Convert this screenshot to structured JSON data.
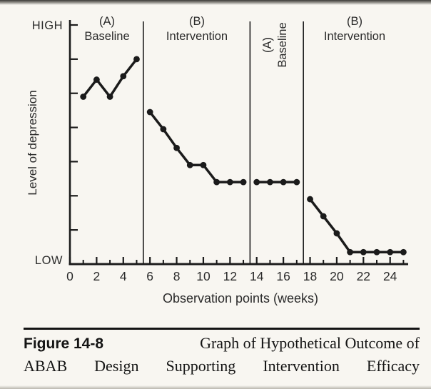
{
  "figure": {
    "caption_label": "Figure 14-8",
    "caption_line1": "Graph of Hypothetical Outcome of",
    "caption_line2": "ABAB Design Supporting Intervention Efficacy"
  },
  "chart_data": {
    "type": "line",
    "title": "",
    "xlabel": "Observation points (weeks)",
    "ylabel": "Level of depression",
    "y_axis_top_label": "HIGH",
    "y_axis_bottom_label": "LOW",
    "x_tick_labels": [
      0,
      2,
      4,
      6,
      8,
      10,
      12,
      14,
      16,
      18,
      20,
      22,
      24
    ],
    "x_minor_ticks": [
      1,
      3,
      5,
      7,
      9,
      11,
      13,
      15,
      17,
      19,
      21,
      23,
      25
    ],
    "x_range": [
      0,
      25.3
    ],
    "y_range": [
      0,
      7
    ],
    "y_scale_note": "unlabeled axis normalized LOW=0 to HIGH=7",
    "y_ticks": [
      1,
      2,
      3,
      4,
      5,
      6,
      7
    ],
    "grid": "off",
    "legend": "none",
    "phase_boundaries_weeks": [
      5.5,
      13.5,
      17.5
    ],
    "phases": [
      {
        "id": "A1",
        "line1": "(A)",
        "line2": "Baseline",
        "orientation": "horizontal",
        "start_week": 0,
        "end_week": 5.5
      },
      {
        "id": "B1",
        "line1": "(B)",
        "line2": "Intervention",
        "orientation": "horizontal",
        "start_week": 5.5,
        "end_week": 13.5
      },
      {
        "id": "A2",
        "line1": "(A)",
        "line2": "Baseline",
        "orientation": "vertical",
        "start_week": 13.5,
        "end_week": 17.5
      },
      {
        "id": "B2",
        "line1": "(B)",
        "line2": "Intervention",
        "orientation": "horizontal",
        "start_week": 17.5,
        "end_week": 25.3
      }
    ],
    "series": [
      {
        "name": "Baseline (A) phase 1",
        "x": [
          1,
          2,
          3,
          4,
          5
        ],
        "y": [
          4.9,
          5.4,
          4.9,
          5.5,
          6.0
        ]
      },
      {
        "name": "Intervention (B) phase 1",
        "x": [
          6,
          7,
          8,
          9,
          10,
          11,
          12,
          13
        ],
        "y": [
          4.45,
          3.95,
          3.4,
          2.9,
          2.9,
          2.4,
          2.4,
          2.4
        ]
      },
      {
        "name": "Baseline (A) phase 2",
        "x": [
          14,
          15,
          16,
          17
        ],
        "y": [
          2.4,
          2.4,
          2.4,
          2.4
        ]
      },
      {
        "name": "Intervention (B) phase 2",
        "x": [
          18,
          19,
          20,
          21,
          22,
          23,
          24,
          25
        ],
        "y": [
          1.9,
          1.4,
          0.9,
          0.35,
          0.35,
          0.35,
          0.35,
          0.35
        ]
      }
    ],
    "ink_color": "#1b1b1b",
    "background_color": "#f8f6f1"
  }
}
